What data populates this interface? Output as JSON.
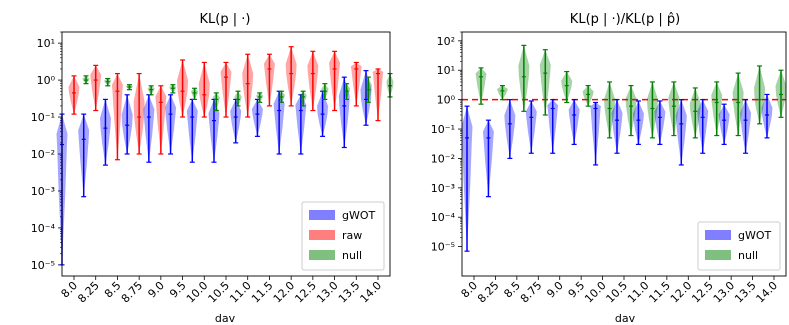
{
  "chart_data": [
    {
      "type": "violin",
      "title": "KL(p | ·)",
      "xlabel": "dav",
      "ylabel": "",
      "yscale": "log",
      "ylim": [
        5e-06,
        20
      ],
      "categories": [
        "8.0",
        "8.25",
        "8.5",
        "8.75",
        "9.0",
        "9.5",
        "10.0",
        "10.5",
        "11.0",
        "11.5",
        "12.0",
        "12.5",
        "13.0",
        "13.5",
        "14.0"
      ],
      "yticks": [
        {
          "value": 10.0,
          "label": "10¹"
        },
        {
          "value": 1.0,
          "label": "10⁰"
        },
        {
          "value": 0.1,
          "label": "10⁻¹"
        },
        {
          "value": 0.01,
          "label": "10⁻²"
        },
        {
          "value": 0.001,
          "label": "10⁻³"
        },
        {
          "value": 0.0001,
          "label": "10⁻⁴"
        },
        {
          "value": 1e-05,
          "label": "10⁻⁵"
        }
      ],
      "series": [
        {
          "name": "gWOT",
          "color": "#0000ff",
          "median": [
            0.018,
            0.025,
            0.05,
            0.06,
            0.1,
            0.12,
            0.1,
            0.08,
            0.1,
            0.12,
            0.15,
            0.15,
            0.12,
            0.2,
            0.3
          ],
          "min": [
            1e-05,
            0.0007,
            0.005,
            0.01,
            0.006,
            0.01,
            0.006,
            0.006,
            0.02,
            0.03,
            0.01,
            0.01,
            0.03,
            0.015,
            0.06
          ],
          "max": [
            0.12,
            0.12,
            0.3,
            0.4,
            0.4,
            0.4,
            0.3,
            0.3,
            0.3,
            0.3,
            0.5,
            0.4,
            0.5,
            1.2,
            1.8
          ]
        },
        {
          "name": "raw",
          "color": "#ff0000",
          "median": [
            0.45,
            1.0,
            0.5,
            0.1,
            0.25,
            0.5,
            0.4,
            1.2,
            0.8,
            2.0,
            1.5,
            1.5,
            2.0,
            2.0,
            1.5
          ],
          "min": [
            0.12,
            0.15,
            0.007,
            0.01,
            0.01,
            0.1,
            0.1,
            0.1,
            0.1,
            0.2,
            0.2,
            0.15,
            0.15,
            0.2,
            0.08
          ],
          "max": [
            1.3,
            2.5,
            1.5,
            1.5,
            0.7,
            3.5,
            3.0,
            3.0,
            5.0,
            5.0,
            8.0,
            6.0,
            6.0,
            3.0,
            2.0
          ]
        },
        {
          "name": "null",
          "color": "#008000",
          "median": [
            1.0,
            0.9,
            0.65,
            0.55,
            0.6,
            0.45,
            0.3,
            0.3,
            0.35,
            0.35,
            0.35,
            0.5,
            0.5,
            0.55,
            0.7
          ],
          "min": [
            0.8,
            0.7,
            0.55,
            0.4,
            0.45,
            0.3,
            0.15,
            0.2,
            0.25,
            0.25,
            0.2,
            0.3,
            0.3,
            0.25,
            0.35
          ],
          "max": [
            1.3,
            1.1,
            0.75,
            0.7,
            0.75,
            0.6,
            0.45,
            0.5,
            0.45,
            0.5,
            0.5,
            0.8,
            0.8,
            1.2,
            1.5
          ]
        }
      ],
      "legend": {
        "location": "lower-right",
        "items": [
          "gWOT",
          "raw",
          "null"
        ]
      }
    },
    {
      "type": "violin",
      "title": "KL(p | ·)/KL(p | p̂)",
      "xlabel": "dav",
      "ylabel": "",
      "yscale": "log",
      "ylim": [
        1e-06,
        200
      ],
      "categories": [
        "8.0",
        "8.25",
        "8.5",
        "8.75",
        "9.0",
        "9.5",
        "10.0",
        "10.5",
        "11.0",
        "11.5",
        "12.0",
        "12.5",
        "13.0",
        "13.5",
        "14.0"
      ],
      "yticks": [
        {
          "value": 100.0,
          "label": "10²"
        },
        {
          "value": 10.0,
          "label": "10¹"
        },
        {
          "value": 1.0,
          "label": "10⁰"
        },
        {
          "value": 0.1,
          "label": "10⁻¹"
        },
        {
          "value": 0.01,
          "label": "10⁻²"
        },
        {
          "value": 0.001,
          "label": "10⁻³"
        },
        {
          "value": 0.0001,
          "label": "10⁻⁴"
        },
        {
          "value": 1e-05,
          "label": "10⁻⁵"
        }
      ],
      "reference_line": {
        "y": 1.0,
        "color": "#ff0000",
        "style": "dashed"
      },
      "series": [
        {
          "name": "gWOT",
          "color": "#0000ff",
          "median": [
            0.05,
            0.05,
            0.15,
            0.25,
            0.5,
            0.3,
            0.5,
            0.2,
            0.2,
            0.25,
            0.15,
            0.25,
            0.2,
            0.2,
            0.3
          ],
          "min": [
            7e-06,
            0.0005,
            0.01,
            0.015,
            0.015,
            0.03,
            0.006,
            0.015,
            0.03,
            0.03,
            0.006,
            0.015,
            0.03,
            0.015,
            0.05
          ],
          "max": [
            0.6,
            0.2,
            1.0,
            0.9,
            1.0,
            1.0,
            0.8,
            1.0,
            0.9,
            0.9,
            1.0,
            1.0,
            0.7,
            1.0,
            1.5
          ]
        },
        {
          "name": "null",
          "color": "#008000",
          "median": [
            6.0,
            2.0,
            6.0,
            8.0,
            3.0,
            1.5,
            0.5,
            0.6,
            0.5,
            0.6,
            0.4,
            0.8,
            0.8,
            1.0,
            1.5
          ],
          "min": [
            0.7,
            1.0,
            0.4,
            0.3,
            0.8,
            0.6,
            0.05,
            0.06,
            0.05,
            0.06,
            0.05,
            0.06,
            0.06,
            0.15,
            0.25
          ],
          "max": [
            12.0,
            3.0,
            70.0,
            50.0,
            9.0,
            3.0,
            4.0,
            3.0,
            4.0,
            4.0,
            2.5,
            4.0,
            8.0,
            14.0,
            10.0
          ]
        }
      ],
      "legend": {
        "location": "lower-right",
        "items": [
          "gWOT",
          "null"
        ]
      }
    }
  ]
}
